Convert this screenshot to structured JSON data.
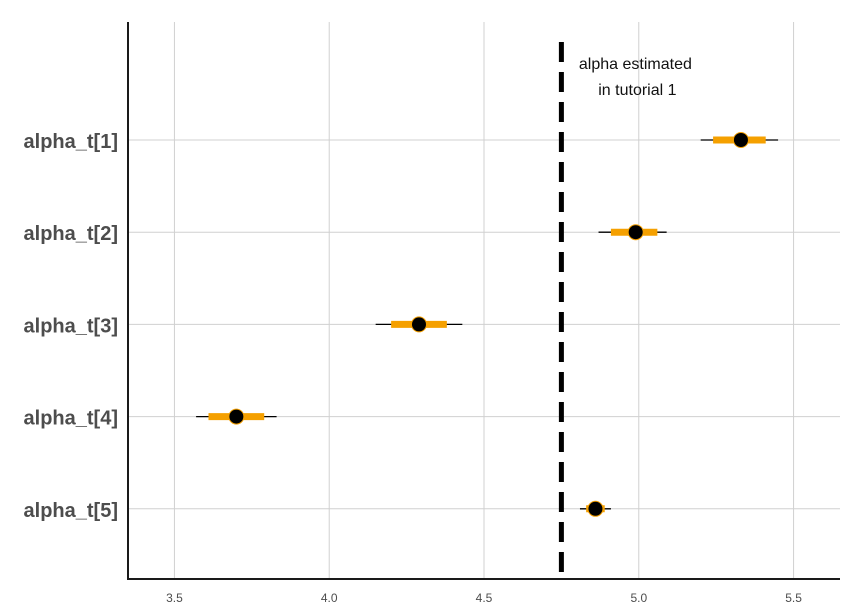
{
  "chart_data": {
    "type": "interval",
    "title": "",
    "xlabel": "",
    "ylabel": "",
    "xlim": [
      3.35,
      5.65
    ],
    "x_ticks": [
      3.5,
      4.0,
      4.5,
      5.0,
      5.5
    ],
    "x_tick_labels": [
      "3.5",
      "4.0",
      "4.5",
      "5.0",
      "5.5"
    ],
    "grid": true,
    "categories": [
      "alpha_t[1]",
      "alpha_t[2]",
      "alpha_t[3]",
      "alpha_t[4]",
      "alpha_t[5]"
    ],
    "series": [
      {
        "name": "alpha_t[1]",
        "point": 5.33,
        "inner": [
          5.24,
          5.41
        ],
        "outer": [
          5.2,
          5.45
        ]
      },
      {
        "name": "alpha_t[2]",
        "point": 4.99,
        "inner": [
          4.91,
          5.06
        ],
        "outer": [
          4.87,
          5.09
        ]
      },
      {
        "name": "alpha_t[3]",
        "point": 4.29,
        "inner": [
          4.2,
          4.38
        ],
        "outer": [
          4.15,
          4.43
        ]
      },
      {
        "name": "alpha_t[4]",
        "point": 3.7,
        "inner": [
          3.61,
          3.79
        ],
        "outer": [
          3.57,
          3.83
        ]
      },
      {
        "name": "alpha_t[5]",
        "point": 4.86,
        "inner": [
          4.83,
          4.89
        ],
        "outer": [
          4.81,
          4.91
        ]
      }
    ],
    "reference_line": {
      "x": 4.75,
      "style": "dashed",
      "label_lines": [
        "alpha estimated",
        "in tutorial 1"
      ]
    },
    "colors": {
      "inner_interval": "#F5A000",
      "outer_interval": "#000000",
      "point": "#000000",
      "grid": "#d0d0d0",
      "axis": "#1a1a1a",
      "reference_line": "#000000"
    }
  }
}
